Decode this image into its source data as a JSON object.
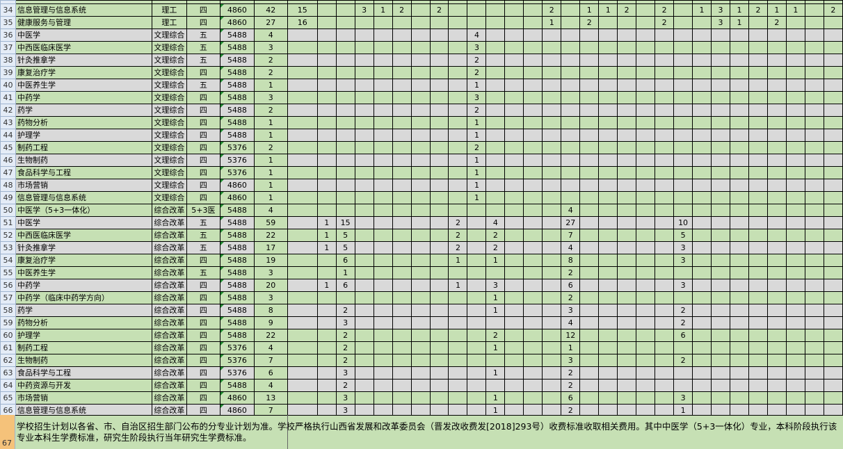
{
  "colors": {
    "green": "#c6e0b4",
    "gray": "#d9d9d9",
    "row_header": "#e4ecf7",
    "selected_row_header": "#f5c27a"
  },
  "data_column_count": 29,
  "rows": [
    {
      "num": "34",
      "name": "信息管理与信息系统",
      "category": "理工",
      "years": "四",
      "fee": "4860",
      "total": "42",
      "bg": "g",
      "data_bg": "g",
      "cells": {
        "0": "15",
        "3": "3",
        "4": "1",
        "5": "2",
        "7": "2",
        "13": "2",
        "15": "1",
        "16": "1",
        "17": "2",
        "19": "2",
        "21": "1",
        "22": "3",
        "23": "1",
        "24": "2",
        "25": "1",
        "26": "1",
        "28": "2"
      }
    },
    {
      "num": "35",
      "name": "健康服务与管理",
      "category": "理工",
      "years": "四",
      "fee": "4860",
      "total": "27",
      "bg": "g",
      "data_bg": "g",
      "cells": {
        "0": "16",
        "13": "1",
        "15": "2",
        "19": "2",
        "22": "3",
        "23": "1",
        "25": "2"
      }
    },
    {
      "num": "36",
      "name": "中医学",
      "category": "文理综合",
      "years": "五",
      "fee": "5488",
      "total": "4",
      "bg": "y",
      "data_bg": "y",
      "cells": {
        "9": "4"
      }
    },
    {
      "num": "37",
      "name": "中西医临床医学",
      "category": "文理综合",
      "years": "五",
      "fee": "5488",
      "total": "3",
      "bg": "g",
      "data_bg": "g",
      "cells": {
        "9": "3"
      }
    },
    {
      "num": "38",
      "name": "针灸推拿学",
      "category": "文理综合",
      "years": "五",
      "fee": "5488",
      "total": "2",
      "bg": "y",
      "data_bg": "y",
      "cells": {
        "9": "2"
      }
    },
    {
      "num": "39",
      "name": "康复治疗学",
      "category": "文理综合",
      "years": "四",
      "fee": "5488",
      "total": "2",
      "bg": "g",
      "data_bg": "g",
      "cells": {
        "9": "2"
      }
    },
    {
      "num": "40",
      "name": "中医养生学",
      "category": "文理综合",
      "years": "五",
      "fee": "5488",
      "total": "1",
      "bg": "y",
      "data_bg": "y",
      "cells": {
        "9": "1"
      }
    },
    {
      "num": "41",
      "name": "中药学",
      "category": "文理综合",
      "years": "四",
      "fee": "5488",
      "total": "3",
      "bg": "g",
      "data_bg": "g",
      "cells": {
        "9": "3"
      }
    },
    {
      "num": "42",
      "name": "药学",
      "category": "文理综合",
      "years": "四",
      "fee": "5488",
      "total": "2",
      "bg": "y",
      "data_bg": "y",
      "cells": {
        "9": "2"
      }
    },
    {
      "num": "43",
      "name": "药物分析",
      "category": "文理综合",
      "years": "四",
      "fee": "5488",
      "total": "1",
      "bg": "g",
      "data_bg": "g",
      "cells": {
        "9": "1"
      }
    },
    {
      "num": "44",
      "name": "护理学",
      "category": "文理综合",
      "years": "四",
      "fee": "5488",
      "total": "1",
      "bg": "y",
      "data_bg": "y",
      "cells": {
        "9": "1"
      }
    },
    {
      "num": "45",
      "name": "制药工程",
      "category": "文理综合",
      "years": "四",
      "fee": "5376",
      "total": "2",
      "bg": "g",
      "data_bg": "g",
      "cells": {
        "9": "2"
      }
    },
    {
      "num": "46",
      "name": "生物制药",
      "category": "文理综合",
      "years": "四",
      "fee": "5376",
      "total": "1",
      "bg": "y",
      "data_bg": "y",
      "cells": {
        "9": "1"
      }
    },
    {
      "num": "47",
      "name": "食品科学与工程",
      "category": "文理综合",
      "years": "四",
      "fee": "5376",
      "total": "1",
      "bg": "g",
      "data_bg": "g",
      "cells": {
        "9": "1"
      }
    },
    {
      "num": "48",
      "name": "市场营销",
      "category": "文理综合",
      "years": "四",
      "fee": "4860",
      "total": "1",
      "bg": "y",
      "data_bg": "y",
      "cells": {
        "9": "1"
      }
    },
    {
      "num": "49",
      "name": "信息管理与信息系统",
      "category": "文理综合",
      "years": "四",
      "fee": "4860",
      "total": "1",
      "bg": "g",
      "data_bg": "g",
      "cells": {
        "9": "1"
      }
    },
    {
      "num": "50",
      "name": "中医学（5+3一体化）",
      "category": "综合改革",
      "years": "5+3医",
      "fee": "5488",
      "total": "4",
      "bg": "g",
      "data_bg": "g",
      "cells": {
        "14": "4"
      }
    },
    {
      "num": "51",
      "name": "中医学",
      "category": "综合改革",
      "years": "五",
      "fee": "5488",
      "total": "59",
      "bg": "y",
      "data_bg": "y",
      "cells": {
        "1": "1",
        "2": "15",
        "8": "2",
        "10": "4",
        "14": "27",
        "20": "10"
      }
    },
    {
      "num": "52",
      "name": "中西医临床医学",
      "category": "综合改革",
      "years": "五",
      "fee": "5488",
      "total": "22",
      "bg": "g",
      "data_bg": "g",
      "cells": {
        "1": "1",
        "2": "5",
        "8": "2",
        "10": "2",
        "14": "7",
        "20": "5"
      }
    },
    {
      "num": "53",
      "name": "针灸推拿学",
      "category": "综合改革",
      "years": "五",
      "fee": "5488",
      "total": "17",
      "bg": "y",
      "data_bg": "y",
      "cells": {
        "1": "1",
        "2": "5",
        "8": "2",
        "10": "2",
        "14": "4",
        "20": "3"
      }
    },
    {
      "num": "54",
      "name": "康复治疗学",
      "category": "综合改革",
      "years": "四",
      "fee": "5488",
      "total": "19",
      "bg": "g",
      "data_bg": "g",
      "cells": {
        "2": "6",
        "8": "1",
        "10": "1",
        "14": "8",
        "20": "3"
      }
    },
    {
      "num": "55",
      "name": "中医养生学",
      "category": "综合改革",
      "years": "五",
      "fee": "5488",
      "total": "3",
      "bg": "g",
      "data_bg": "g",
      "cells": {
        "2": "1",
        "14": "2"
      }
    },
    {
      "num": "56",
      "name": "中药学",
      "category": "综合改革",
      "years": "四",
      "fee": "5488",
      "total": "20",
      "bg": "y",
      "data_bg": "y",
      "cells": {
        "1": "1",
        "2": "6",
        "8": "1",
        "10": "3",
        "14": "6",
        "20": "3"
      }
    },
    {
      "num": "57",
      "name": "中药学（临床中药学方向）",
      "category": "综合改革",
      "years": "四",
      "fee": "5488",
      "total": "3",
      "bg": "g",
      "data_bg": "g",
      "cells": {
        "10": "1",
        "14": "2"
      }
    },
    {
      "num": "58",
      "name": "药学",
      "category": "综合改革",
      "years": "四",
      "fee": "5488",
      "total": "8",
      "bg": "y",
      "data_bg": "y",
      "cells": {
        "2": "2",
        "10": "1",
        "14": "3",
        "20": "2"
      }
    },
    {
      "num": "59",
      "name": "药物分析",
      "category": "综合改革",
      "years": "四",
      "fee": "5488",
      "total": "9",
      "bg": "g",
      "data_bg": "y",
      "cells": {
        "2": "3",
        "14": "4",
        "20": "2"
      }
    },
    {
      "num": "60",
      "name": "护理学",
      "category": "综合改革",
      "years": "四",
      "fee": "5488",
      "total": "22",
      "bg": "g",
      "data_bg": "g",
      "cells": {
        "2": "2",
        "10": "2",
        "14": "12",
        "20": "6"
      }
    },
    {
      "num": "61",
      "name": "制药工程",
      "category": "综合改革",
      "years": "四",
      "fee": "5376",
      "total": "4",
      "bg": "g",
      "data_bg": "g",
      "cells": {
        "2": "2",
        "10": "1",
        "14": "1"
      }
    },
    {
      "num": "62",
      "name": "生物制药",
      "category": "综合改革",
      "years": "四",
      "fee": "5376",
      "total": "7",
      "bg": "g",
      "data_bg": "g",
      "cells": {
        "2": "2",
        "14": "3",
        "20": "2"
      }
    },
    {
      "num": "63",
      "name": "食品科学与工程",
      "category": "综合改革",
      "years": "四",
      "fee": "5376",
      "total": "6",
      "bg": "y",
      "data_bg": "y",
      "cells": {
        "2": "3",
        "10": "1",
        "14": "2"
      }
    },
    {
      "num": "64",
      "name": "中药资源与开发",
      "category": "综合改革",
      "years": "四",
      "fee": "5488",
      "total": "4",
      "bg": "g",
      "data_bg": "y",
      "cells": {
        "2": "2",
        "14": "2"
      }
    },
    {
      "num": "65",
      "name": "市场营销",
      "category": "综合改革",
      "years": "四",
      "fee": "4860",
      "total": "13",
      "bg": "g",
      "data_bg": "g",
      "cells": {
        "2": "3",
        "10": "1",
        "14": "6",
        "20": "3"
      }
    },
    {
      "num": "66",
      "name": "信息管理与信息系统",
      "category": "综合改革",
      "years": "四",
      "fee": "4860",
      "total": "7",
      "bg": "y",
      "data_bg": "y",
      "cells": {
        "2": "3",
        "10": "1",
        "14": "2",
        "20": "1"
      }
    }
  ],
  "footer": {
    "num": "67",
    "note": "学校招生计划以各省、市、自治区招生部门公布的分专业计划为准。学校严格执行山西省发展和改革委员会（晋发改收费发[2018]293号）收费标准收取相关费用。其中中医学（5+3一体化）专业，本科阶段执行该专业本科生学费标准，研究生阶段执行当年研究生学费标准。"
  }
}
